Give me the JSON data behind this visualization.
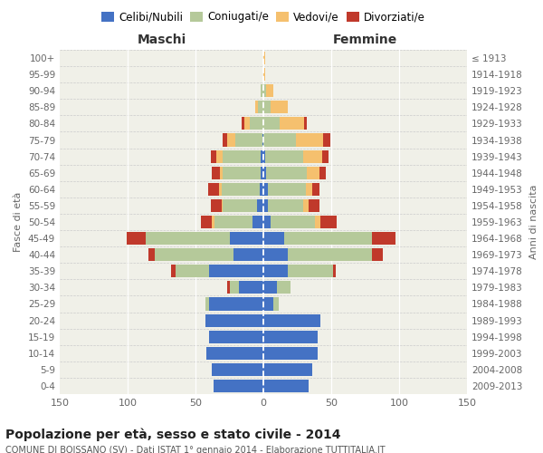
{
  "age_groups": [
    "0-4",
    "5-9",
    "10-14",
    "15-19",
    "20-24",
    "25-29",
    "30-34",
    "35-39",
    "40-44",
    "45-49",
    "50-54",
    "55-59",
    "60-64",
    "65-69",
    "70-74",
    "75-79",
    "80-84",
    "85-89",
    "90-94",
    "95-99",
    "100+"
  ],
  "birth_years": [
    "2009-2013",
    "2004-2008",
    "1999-2003",
    "1994-1998",
    "1989-1993",
    "1984-1988",
    "1979-1983",
    "1974-1978",
    "1969-1973",
    "1964-1968",
    "1959-1963",
    "1954-1958",
    "1949-1953",
    "1944-1948",
    "1939-1943",
    "1934-1938",
    "1929-1933",
    "1924-1928",
    "1919-1923",
    "1914-1918",
    "≤ 1913"
  ],
  "males_celibi": [
    37,
    38,
    42,
    40,
    43,
    40,
    18,
    40,
    22,
    25,
    8,
    5,
    3,
    2,
    2,
    1,
    0,
    0,
    0,
    0,
    0
  ],
  "males_coniugati": [
    0,
    0,
    0,
    0,
    0,
    3,
    7,
    25,
    58,
    62,
    28,
    25,
    28,
    28,
    28,
    20,
    10,
    4,
    2,
    0,
    0
  ],
  "males_vedovi": [
    0,
    0,
    0,
    0,
    0,
    0,
    0,
    0,
    0,
    0,
    2,
    1,
    2,
    2,
    5,
    6,
    4,
    2,
    0,
    0,
    0
  ],
  "males_divorziati": [
    0,
    0,
    0,
    0,
    0,
    0,
    2,
    3,
    5,
    14,
    8,
    8,
    8,
    6,
    4,
    3,
    2,
    0,
    0,
    0,
    0
  ],
  "females_nubili": [
    33,
    36,
    40,
    40,
    42,
    7,
    10,
    18,
    18,
    15,
    5,
    3,
    3,
    2,
    1,
    0,
    0,
    0,
    0,
    0,
    0
  ],
  "females_coniugate": [
    0,
    0,
    0,
    0,
    0,
    4,
    10,
    33,
    62,
    65,
    33,
    26,
    28,
    30,
    28,
    24,
    12,
    5,
    2,
    0,
    0
  ],
  "females_vedove": [
    0,
    0,
    0,
    0,
    0,
    0,
    0,
    0,
    0,
    0,
    4,
    4,
    5,
    9,
    14,
    20,
    18,
    13,
    5,
    1,
    1
  ],
  "females_divorziate": [
    0,
    0,
    0,
    0,
    0,
    0,
    0,
    2,
    8,
    17,
    12,
    8,
    5,
    5,
    5,
    5,
    2,
    0,
    0,
    0,
    0
  ],
  "color_celibi": "#4472c4",
  "color_coniugati": "#b5c99a",
  "color_vedovi": "#f5c06e",
  "color_divorziati": "#c0392b",
  "bg_color": "#f0f0e8",
  "xlim": 150,
  "title": "Popolazione per età, sesso e stato civile - 2014",
  "subtitle": "COMUNE DI BOISSANO (SV) - Dati ISTAT 1° gennaio 2014 - Elaborazione TUTTITALIA.IT",
  "ylabel_left": "Fasce di età",
  "ylabel_right": "Anni di nascita",
  "label_maschi": "Maschi",
  "label_femmine": "Femmine",
  "legend_labels": [
    "Celibi/Nubili",
    "Coniugati/e",
    "Vedovi/e",
    "Divorziati/e"
  ]
}
